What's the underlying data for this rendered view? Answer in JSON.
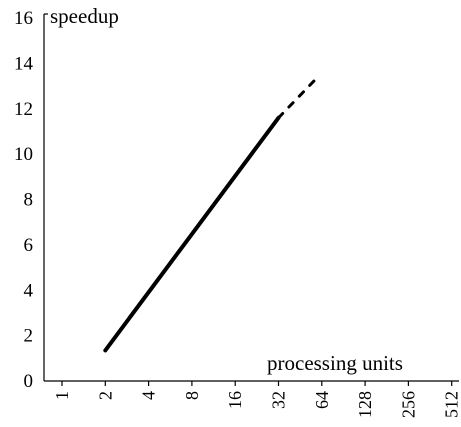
{
  "chart_data": {
    "type": "line",
    "title": "",
    "ylabel": "speedup",
    "xlabel": "processing units",
    "x_scale": "log2",
    "x_ticks": [
      "1",
      "2",
      "4",
      "8",
      "16",
      "32",
      "64",
      "128",
      "256",
      "512"
    ],
    "y_ticks": [
      "0",
      "2",
      "4",
      "6",
      "8",
      "10",
      "12",
      "14",
      "16"
    ],
    "ylim": [
      0,
      16
    ],
    "xlim": [
      1,
      512
    ],
    "grid": false,
    "legend": "none",
    "series": [
      {
        "style": "solid",
        "color": "#000000",
        "points": [
          {
            "x": 2,
            "y": 1.35
          },
          {
            "x": 32,
            "y": 11.6
          }
        ]
      },
      {
        "style": "dashed",
        "color": "#000000",
        "points": [
          {
            "x": 32,
            "y": 11.6
          },
          {
            "x": 60,
            "y": 13.4
          }
        ]
      }
    ]
  }
}
